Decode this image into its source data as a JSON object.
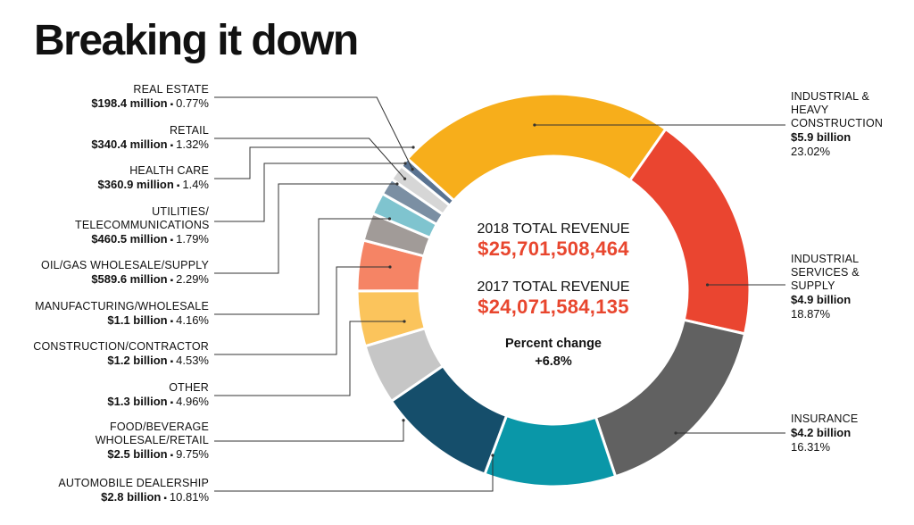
{
  "title": "Breaking it down",
  "center": {
    "rev2018_label": "2018 TOTAL REVENUE",
    "rev2018_value": "$25,701,508,464",
    "rev2017_label": "2017 TOTAL REVENUE",
    "rev2017_value": "$24,071,584,135",
    "change_label": "Percent change",
    "change_value": "+6.8%"
  },
  "colors": {
    "accent": "#e8462e",
    "leader": "#333333"
  },
  "chart_data": {
    "type": "pie",
    "donut": true,
    "units": "percent of 2018 total revenue",
    "slices": [
      {
        "name": "INDUSTRIAL & HEAVY CONSTRUCTION",
        "amount": "$5.9 billion",
        "pct_label": "23.02%",
        "value": 23.02,
        "color": "#f7ae1b"
      },
      {
        "name": "INDUSTRIAL SERVICES & SUPPLY",
        "amount": "$4.9 billion",
        "pct_label": "18.87%",
        "value": 18.87,
        "color": "#ea4530"
      },
      {
        "name": "INSURANCE",
        "amount": "$4.2 billion",
        "pct_label": "16.31%",
        "value": 16.31,
        "color": "#616161"
      },
      {
        "name": "AUTOMOBILE DEALERSHIP",
        "amount": "$2.8 billion",
        "pct_label": "10.81%",
        "value": 10.81,
        "color": "#0a97a8"
      },
      {
        "name": "FOOD/BEVERAGE WHOLESALE/RETAIL",
        "amount": "$2.5 billion",
        "pct_label": "9.75%",
        "value": 9.75,
        "color": "#154e6b"
      },
      {
        "name": "OTHER",
        "amount": "$1.3 billion",
        "pct_label": "4.96%",
        "value": 4.96,
        "color": "#c6c6c6"
      },
      {
        "name": "CONSTRUCTION/CONTRACTOR",
        "amount": "$1.2 billion",
        "pct_label": "4.53%",
        "value": 4.53,
        "color": "#fbc45c"
      },
      {
        "name": "MANUFACTURING/WHOLESALE",
        "amount": "$1.1 billion",
        "pct_label": "4.16%",
        "value": 4.16,
        "color": "#f58465"
      },
      {
        "name": "OIL/GAS WHOLESALE/SUPPLY",
        "amount": "$589.6 million",
        "pct_label": "2.29%",
        "value": 2.29,
        "color": "#a19b98"
      },
      {
        "name": "UTILITIES/ TELECOMMUNICATIONS",
        "amount": "$460.5 million",
        "pct_label": "1.79%",
        "value": 1.79,
        "color": "#7fc4cf"
      },
      {
        "name": "HEALTH CARE",
        "amount": "$360.9 million",
        "pct_label": "1.4%",
        "value": 1.4,
        "color": "#7b8fa3"
      },
      {
        "name": "RETAIL",
        "amount": "$340.4 million",
        "pct_label": "1.32%",
        "value": 1.32,
        "color": "#d6d6d6"
      },
      {
        "name": "REAL ESTATE",
        "amount": "$198.4 million",
        "pct_label": "0.77%",
        "value": 0.77,
        "color": "#5a7391"
      }
    ]
  }
}
